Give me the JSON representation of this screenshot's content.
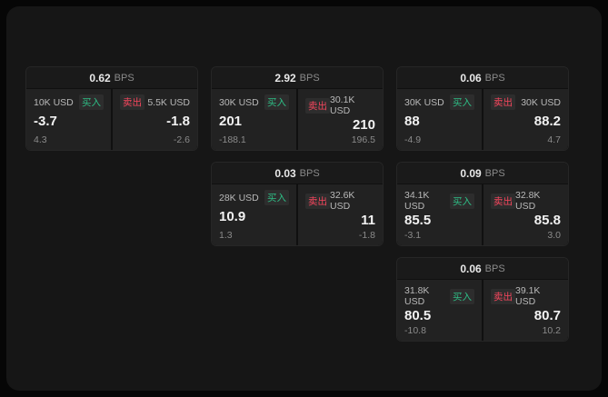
{
  "colors": {
    "buy": "#2ebd85",
    "sell": "#f6465d",
    "panel": "#161616"
  },
  "cards": [
    {
      "spread": "0.62",
      "unit": "BPS",
      "buy": {
        "size": "10K USD",
        "label": "买入",
        "price": "-3.7",
        "change": "4.3"
      },
      "sell": {
        "size": "5.5K USD",
        "label": "卖出",
        "price": "-1.8",
        "change": "-2.6"
      }
    },
    {
      "spread": "2.92",
      "unit": "BPS",
      "buy": {
        "size": "30K USD",
        "label": "买入",
        "price": "201",
        "change": "-188.1"
      },
      "sell": {
        "size": "30.1K USD",
        "label": "卖出",
        "price": "210",
        "change": "196.5"
      }
    },
    {
      "spread": "0.06",
      "unit": "BPS",
      "buy": {
        "size": "30K USD",
        "label": "买入",
        "price": "88",
        "change": "-4.9"
      },
      "sell": {
        "size": "30K USD",
        "label": "卖出",
        "price": "88.2",
        "change": "4.7"
      }
    },
    {
      "spread": "0.03",
      "unit": "BPS",
      "buy": {
        "size": "28K USD",
        "label": "买入",
        "price": "10.9",
        "change": "1.3"
      },
      "sell": {
        "size": "32.6K USD",
        "label": "卖出",
        "price": "11",
        "change": "-1.8"
      }
    },
    {
      "spread": "0.09",
      "unit": "BPS",
      "buy": {
        "size": "34.1K USD",
        "label": "买入",
        "price": "85.5",
        "change": "-3.1"
      },
      "sell": {
        "size": "32.8K USD",
        "label": "卖出",
        "price": "85.8",
        "change": "3.0"
      }
    },
    {
      "spread": "0.06",
      "unit": "BPS",
      "buy": {
        "size": "31.8K USD",
        "label": "买入",
        "price": "80.5",
        "change": "-10.8"
      },
      "sell": {
        "size": "39.1K USD",
        "label": "卖出",
        "price": "80.7",
        "change": "10.2"
      }
    }
  ]
}
